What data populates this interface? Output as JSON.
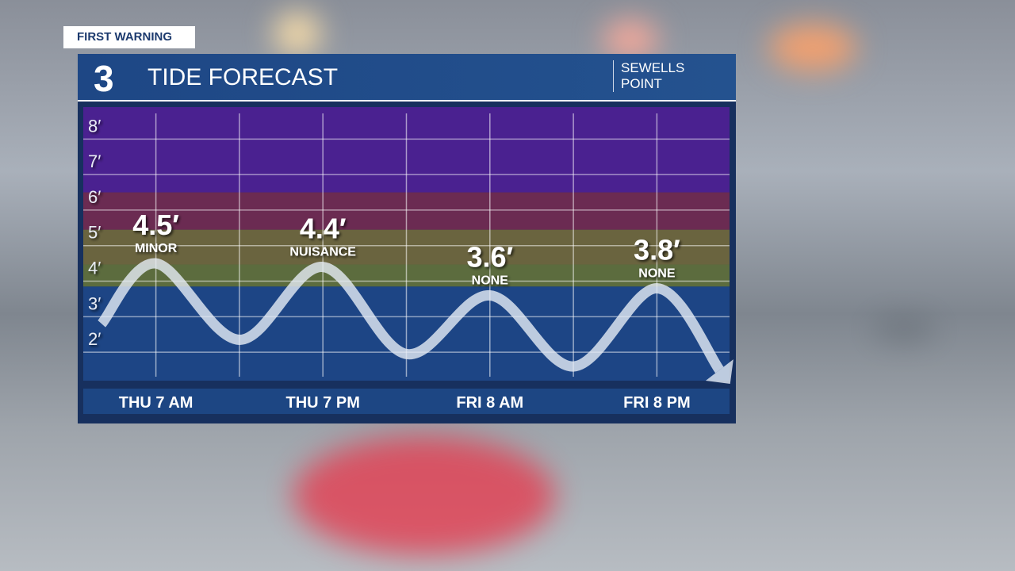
{
  "header": {
    "tag": "FIRST WARNING",
    "logo": "3",
    "title": "TIDE FORECAST",
    "location": [
      "SEWELLS",
      "POINT"
    ]
  },
  "chart_data": {
    "type": "tide",
    "ylim": [
      1.2,
      8.9
    ],
    "yticks": [
      {
        "value": 2,
        "label": "2′"
      },
      {
        "value": 3,
        "label": "3′"
      },
      {
        "value": 4,
        "label": "4′"
      },
      {
        "value": 5,
        "label": "5′"
      },
      {
        "value": 6,
        "label": "6′"
      },
      {
        "value": 7,
        "label": "7′"
      },
      {
        "value": 8,
        "label": "8′"
      }
    ],
    "xlim": [
      -0.87,
      6.87
    ],
    "xticks": [
      0,
      1,
      2,
      3,
      4,
      5,
      6
    ],
    "bands": [
      {
        "from": 1.2,
        "to": 3.85,
        "color": "#1d4585"
      },
      {
        "from": 3.85,
        "to": 4.47,
        "color": "#5c6c3e"
      },
      {
        "from": 4.47,
        "to": 5.45,
        "color": "#6a643f"
      },
      {
        "from": 5.45,
        "to": 6.5,
        "color": "#6b2b52"
      },
      {
        "from": 6.5,
        "to": 8.9,
        "color": "#4a2190"
      }
    ],
    "categories": [
      "THU 7 AM",
      "THU 7 PM",
      "FRI 8 AM",
      "FRI 8 PM"
    ],
    "category_x": [
      0,
      2,
      4,
      6
    ],
    "values": [
      4.5,
      4.4,
      3.6,
      3.8
    ],
    "value_labels": [
      "4.5′",
      "4.4′",
      "3.6′",
      "3.8′"
    ],
    "status": [
      "MINOR",
      "NUISANCE",
      "NONE",
      "NONE"
    ],
    "tide_curve": {
      "color": "#e6ecf5",
      "x": [
        -0.65,
        0,
        1,
        2,
        3,
        4,
        5,
        6,
        6.75
      ],
      "values": [
        2.8,
        4.5,
        2.35,
        4.4,
        1.95,
        3.6,
        1.6,
        3.8,
        1.5
      ]
    }
  }
}
